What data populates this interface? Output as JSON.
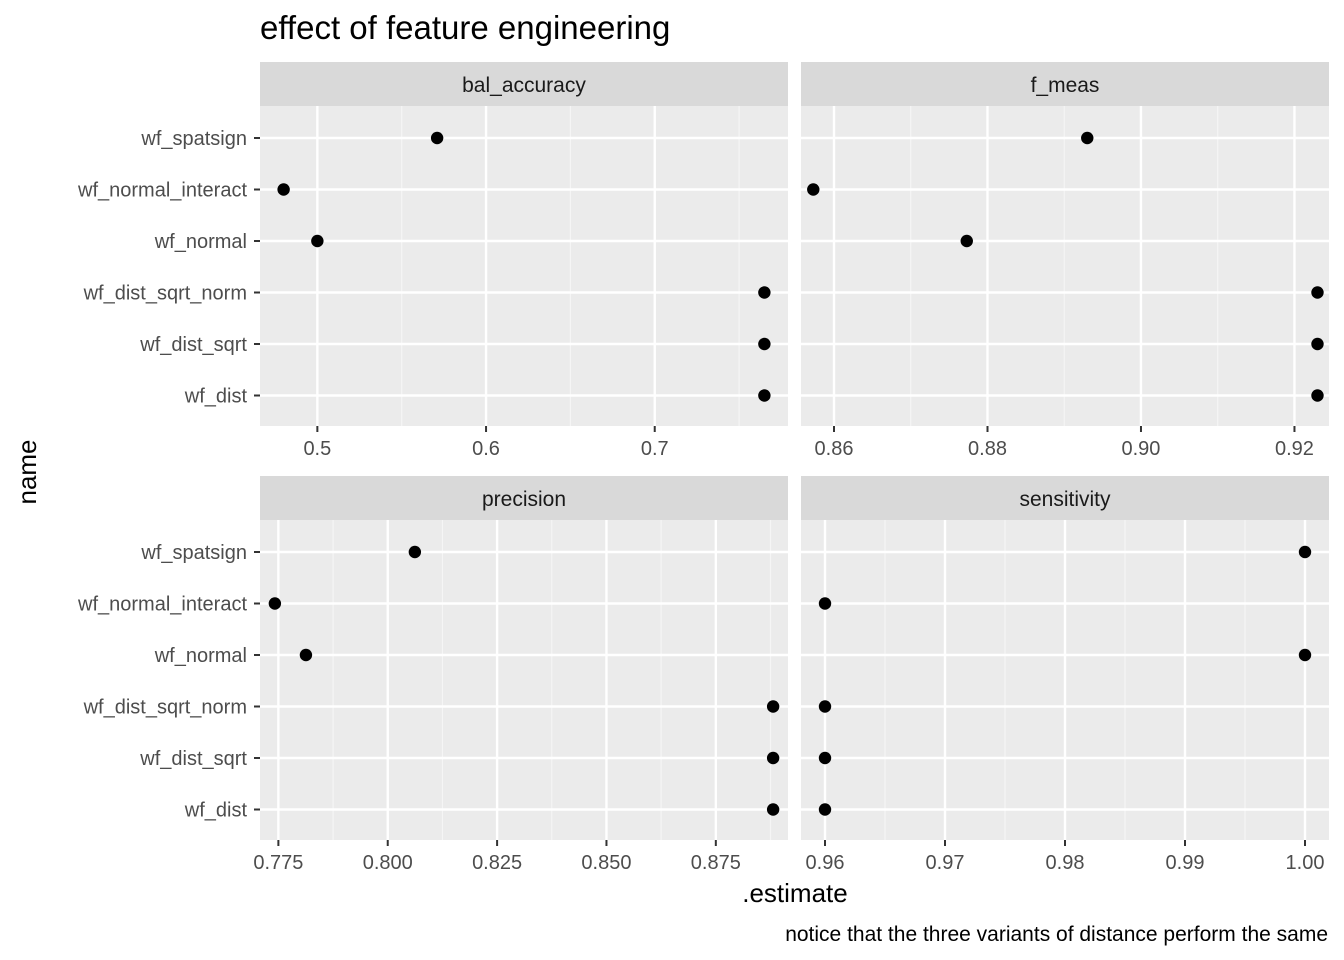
{
  "chart_data": {
    "type": "scatter",
    "title": "effect of feature engineering",
    "xlabel": ".estimate",
    "ylabel": "name",
    "caption": "notice that the three variants of distance perform the same",
    "grid": true,
    "categories": [
      "wf_spatsign",
      "wf_normal_interact",
      "wf_normal",
      "wf_dist_sqrt_norm",
      "wf_dist_sqrt",
      "wf_dist"
    ],
    "panels": [
      {
        "name": "bal_accuracy",
        "xlim": [
          0.466,
          0.779
        ],
        "ticks": [
          0.5,
          0.6,
          0.7
        ],
        "tick_labels": [
          "0.5",
          "0.6",
          "0.7"
        ],
        "values": [
          0.571,
          0.48,
          0.5,
          0.765,
          0.765,
          0.765
        ]
      },
      {
        "name": "f_meas",
        "xlim": [
          0.8557,
          0.9245
        ],
        "ticks": [
          0.86,
          0.88,
          0.9,
          0.92
        ],
        "tick_labels": [
          "0.86",
          "0.88",
          "0.90",
          "0.92"
        ],
        "values": [
          0.893,
          0.8573,
          0.8773,
          0.923,
          0.923,
          0.923
        ]
      },
      {
        "name": "precision",
        "xlim": [
          0.7708,
          0.8915
        ],
        "ticks": [
          0.775,
          0.8,
          0.825,
          0.85,
          0.875
        ],
        "tick_labels": [
          "0.775",
          "0.800",
          "0.825",
          "0.850",
          "0.875"
        ],
        "values": [
          0.8062,
          0.7742,
          0.7813,
          0.8881,
          0.8881,
          0.8881
        ]
      },
      {
        "name": "sensitivity",
        "xlim": [
          0.958,
          1.002
        ],
        "ticks": [
          0.96,
          0.97,
          0.98,
          0.99,
          1.0
        ],
        "tick_labels": [
          "0.96",
          "0.97",
          "0.98",
          "0.99",
          "1.00"
        ],
        "values": [
          1.0,
          0.96,
          1.0,
          0.96,
          0.96,
          0.96
        ]
      }
    ]
  }
}
